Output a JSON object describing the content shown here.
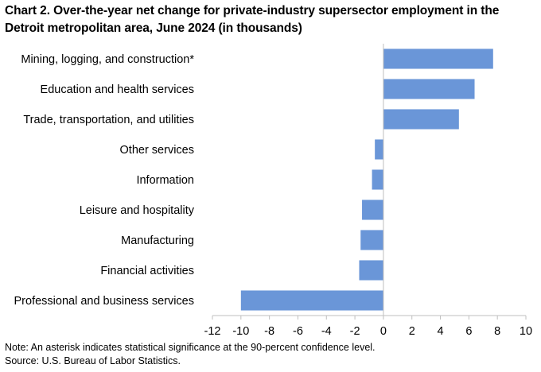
{
  "chart_data": {
    "type": "bar",
    "orientation": "horizontal",
    "title": "Chart 2. Over-the-year net change for private-industry supersector employment in the Detroit metropolitan area, June 2024 (in thousands)",
    "categories": [
      "Mining, logging, and construction*",
      "Education and health services",
      "Trade, transportation, and utilities",
      "Other services",
      "Information",
      "Leisure and hospitality",
      "Manufacturing",
      "Financial activities",
      "Professional and business services"
    ],
    "values": [
      7.7,
      6.4,
      5.3,
      -0.6,
      -0.8,
      -1.5,
      -1.6,
      -1.7,
      -10.0
    ],
    "xlim": [
      -12,
      10
    ],
    "xticks": [
      -12,
      -10,
      -8,
      -6,
      -4,
      -2,
      0,
      2,
      4,
      6,
      8,
      10
    ],
    "xlabel": "",
    "ylabel": "",
    "bar_color": "#6A96D8",
    "grid": false
  },
  "notes": {
    "note": "Note: An asterisk indicates statistical significance at the 90-percent confidence level.",
    "source": "Source: U.S. Bureau of Labor Statistics."
  }
}
